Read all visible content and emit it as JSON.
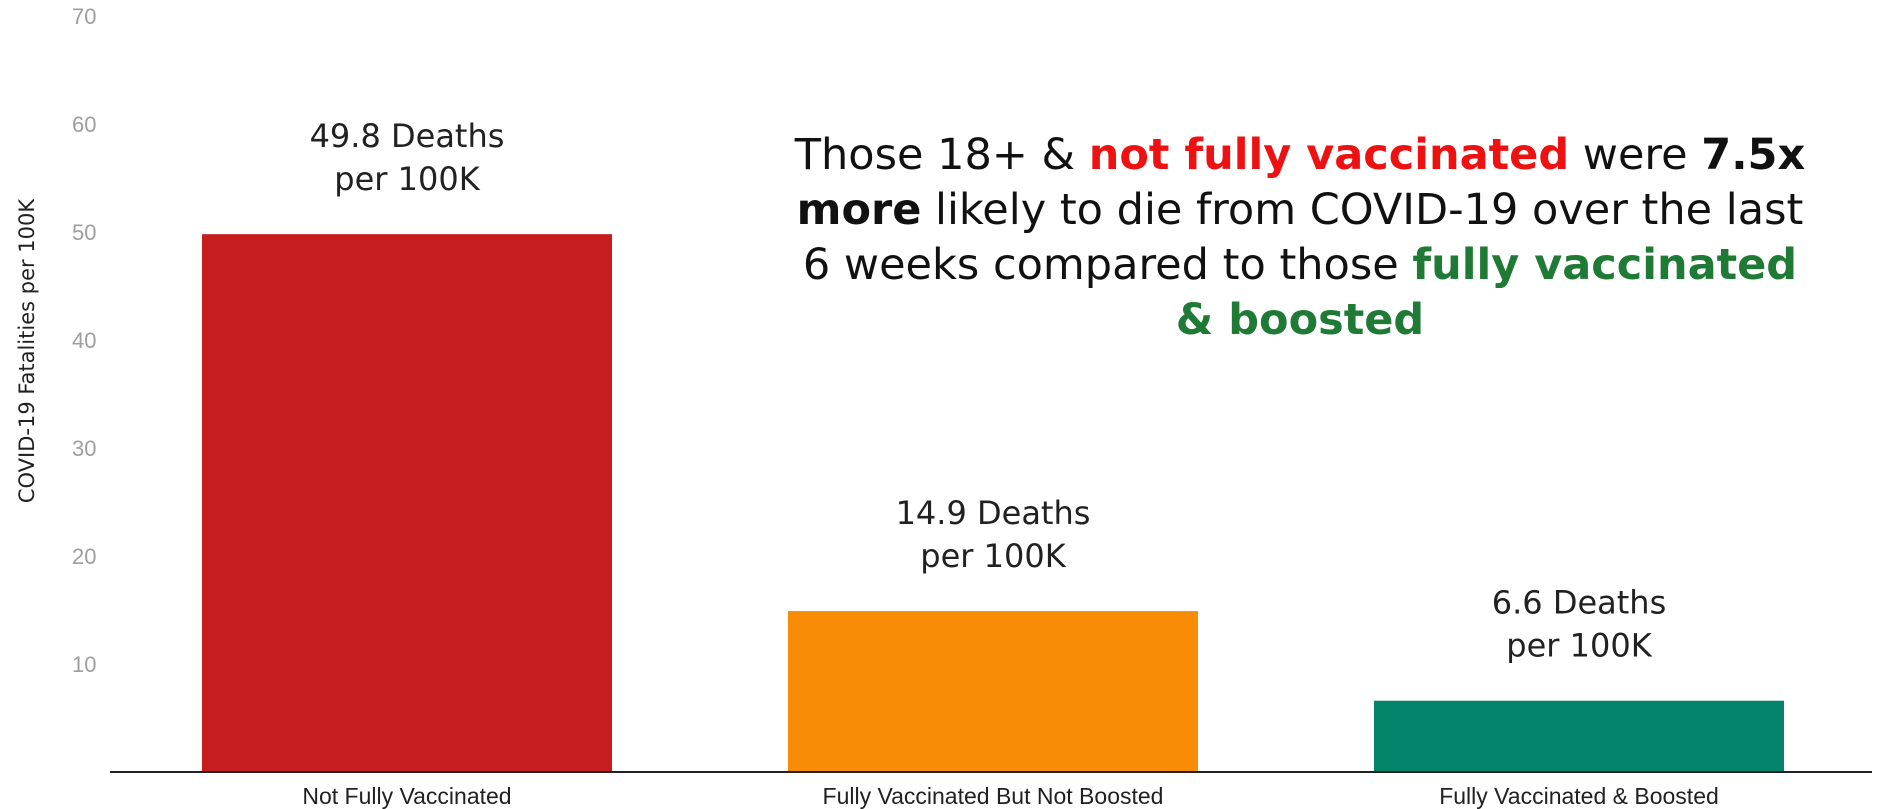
{
  "chart_data": {
    "type": "bar",
    "categories": [
      "Not Fully Vaccinated",
      "Fully Vaccinated But Not Boosted",
      "Fully Vaccinated & Boosted"
    ],
    "values": [
      49.8,
      14.9,
      6.6
    ],
    "data_labels": [
      [
        "49.8 Deaths",
        "per 100K"
      ],
      [
        "14.9 Deaths",
        "per 100K"
      ],
      [
        "6.6 Deaths",
        "per 100K"
      ]
    ],
    "bar_colors": [
      "#c61e1e",
      "#f98c05",
      "#02836a"
    ],
    "ylabel": "COVID-19 Fatalities per 100K",
    "xlabel": "",
    "ylim": [
      0,
      70
    ],
    "yticks": [
      10,
      20,
      30,
      40,
      50,
      60,
      70
    ],
    "grid": false,
    "annotation": {
      "parts": [
        {
          "text": "Those 18+ & ",
          "color": "#111111",
          "bold": false
        },
        {
          "text": "not fully vaccinated",
          "color": "#ee1111",
          "bold": true
        },
        {
          "text": " were ",
          "color": "#111111",
          "bold": false
        },
        {
          "text": "7.5x more",
          "color": "#111111",
          "bold": true
        },
        {
          "text": " likely to die from COVID-19 over the last 6 weeks compared to those ",
          "color": "#111111",
          "bold": false
        },
        {
          "text": "fully vaccinated & boosted",
          "color": "#1e7a34",
          "bold": true
        }
      ]
    }
  }
}
